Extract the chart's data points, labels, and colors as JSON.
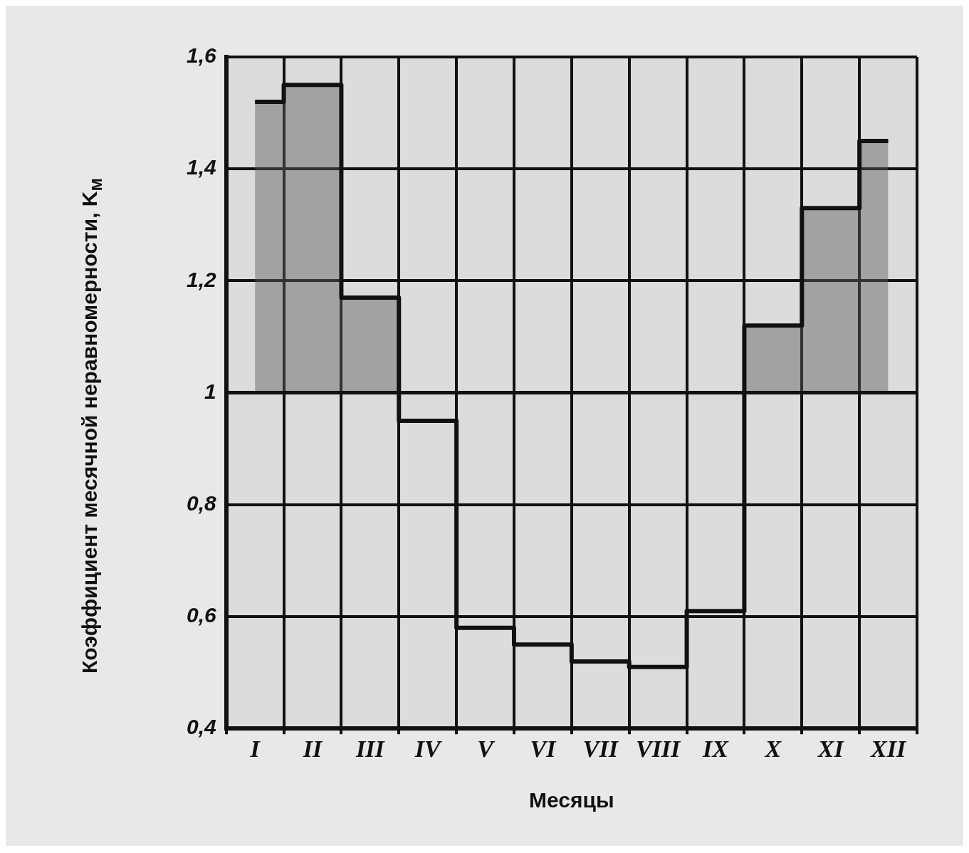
{
  "chart_data": {
    "type": "step",
    "xlabel": "Месяцы",
    "ylabel": "Коэффициент месячной неравномерности, K$_{м}$",
    "categories": [
      "I",
      "II",
      "III",
      "IV",
      "V",
      "VI",
      "VII",
      "VIII",
      "IX",
      "X",
      "XI",
      "XII"
    ],
    "series": [
      {
        "color": "#111111",
        "values": [
          1.52,
          1.55,
          1.17,
          0.95,
          0.58,
          0.55,
          0.52,
          0.51,
          0.61,
          1.12,
          1.33,
          1.45
        ]
      }
    ],
    "ref_lines": [
      {
        "axis": "y",
        "value": 1,
        "color": "#111111"
      }
    ],
    "ylim": [
      0.4,
      1.6
    ],
    "yticks": [
      {
        "value": 0.4,
        "label": "0,4"
      },
      {
        "value": 0.6,
        "label": "0,6"
      },
      {
        "value": 0.8,
        "label": "0,8"
      },
      1,
      {
        "value": 1.2,
        "label": "1,2"
      },
      {
        "value": 1.4,
        "label": "1,4"
      },
      {
        "value": 1.6,
        "label": "1,6"
      }
    ],
    "grid": true,
    "legend": false,
    "marker": "none"
  }
}
